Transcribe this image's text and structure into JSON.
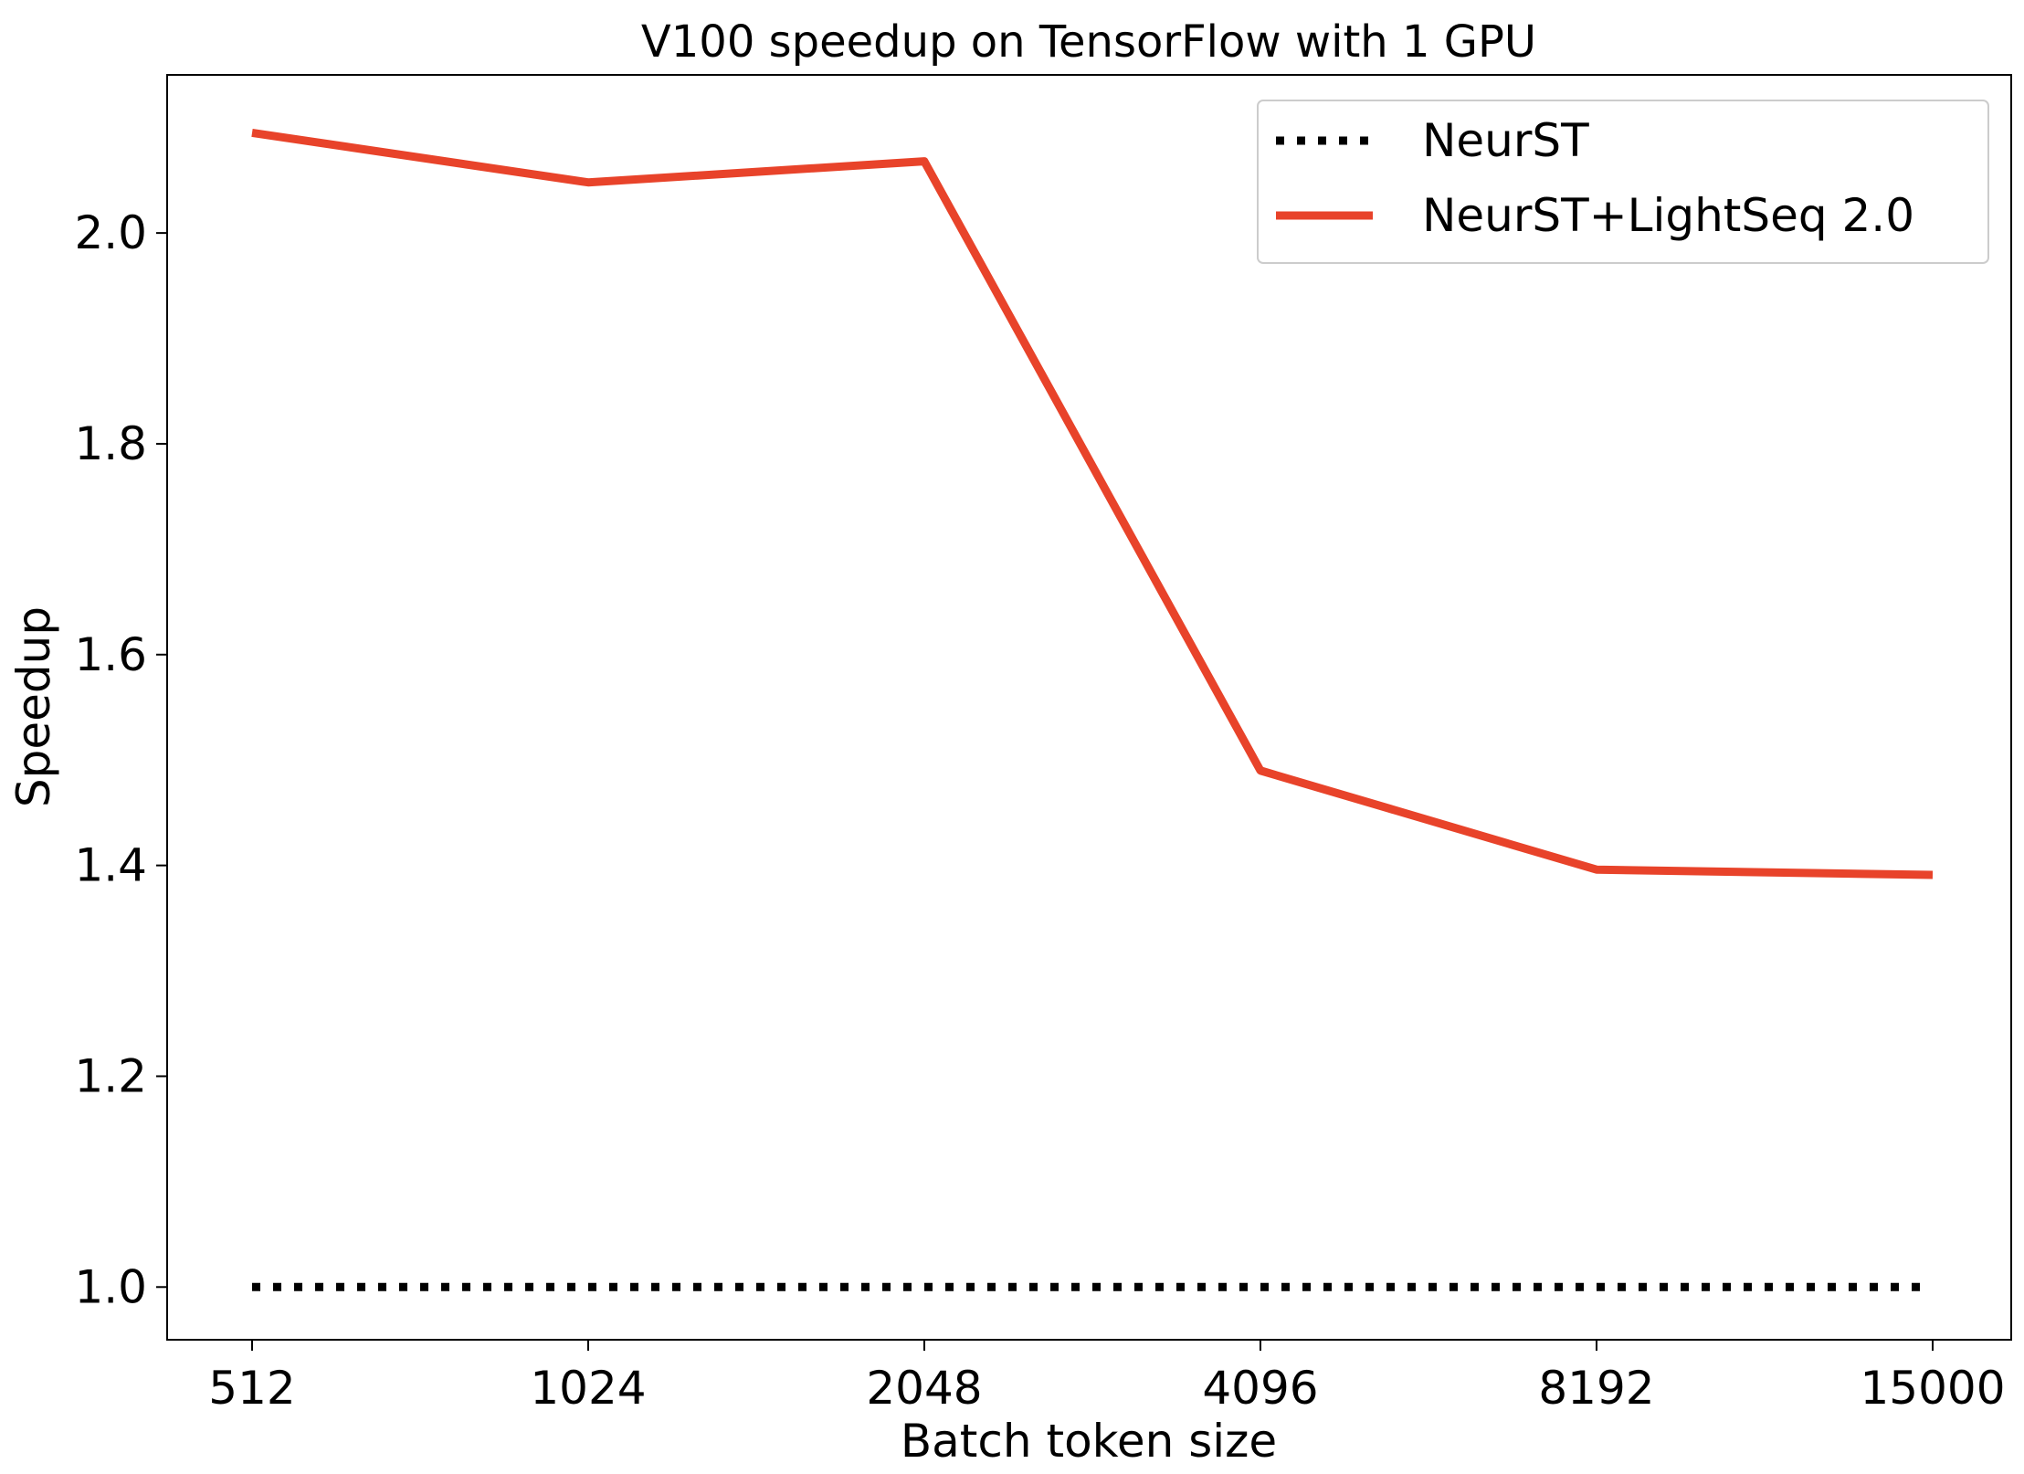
{
  "chart_data": {
    "type": "line",
    "title": "V100 speedup on TensorFlow with 1 GPU",
    "xlabel": "Batch token size",
    "ylabel": "Speedup",
    "categories": [
      "512",
      "1024",
      "2048",
      "4096",
      "8192",
      "15000"
    ],
    "ylim": [
      0.95,
      2.15
    ],
    "yticks": [
      "1.0",
      "1.2",
      "1.4",
      "1.6",
      "1.8",
      "2.0"
    ],
    "ytick_values": [
      1.0,
      1.2,
      1.4,
      1.6,
      1.8,
      2.0
    ],
    "grid": false,
    "legend_position": "top-right",
    "series": [
      {
        "name": "NeurST",
        "values": [
          1.0,
          1.0,
          1.0,
          1.0,
          1.0,
          1.0
        ],
        "color": "#000000",
        "style": "dotted"
      },
      {
        "name": "NeurST+LightSeq 2.0",
        "values": [
          2.095,
          2.048,
          2.068,
          1.49,
          1.396,
          1.391
        ],
        "color": "#e8432a",
        "style": "solid"
      }
    ]
  }
}
